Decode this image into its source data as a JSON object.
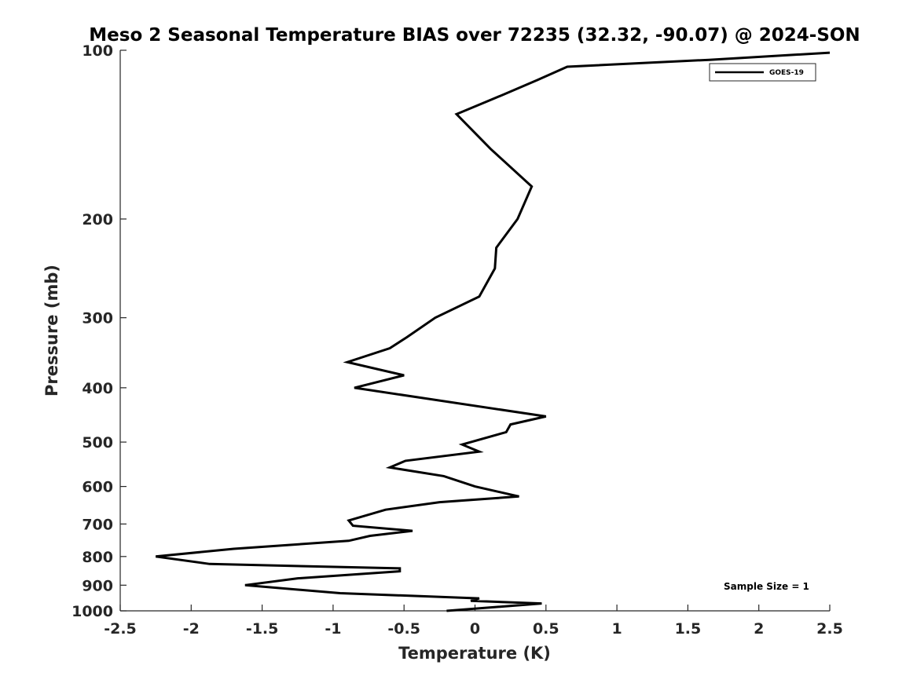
{
  "chart_data": {
    "type": "line",
    "title": "Meso 2 Seasonal Temperature BIAS over 72235 (32.32, -90.07) @ 2024-SON",
    "xlabel": "Temperature (K)",
    "ylabel": "Pressure (mb)",
    "xlim": [
      -2.5,
      2.5
    ],
    "ylim": [
      1000,
      100
    ],
    "yscale": "log",
    "reversed_y": true,
    "xticks": [
      -2.5,
      -2,
      -1.5,
      -1,
      -0.5,
      0,
      0.5,
      1,
      1.5,
      2,
      2.5
    ],
    "xtick_labels": [
      "-2.5",
      "-2",
      "-1.5",
      "-1",
      "-0.5",
      "0",
      "0.5",
      "1",
      "1.5",
      "2",
      "2.5"
    ],
    "yticks": [
      100,
      200,
      300,
      400,
      500,
      600,
      700,
      800,
      900,
      1000
    ],
    "ytick_labels": [
      "100",
      "200",
      "300",
      "400",
      "500",
      "600",
      "700",
      "800",
      "900",
      "1000"
    ],
    "grid": false,
    "legend": {
      "position": "top-right",
      "entries": [
        "GOES-19"
      ]
    },
    "annotation": "Sample Size = 1",
    "series": [
      {
        "name": "GOES-19",
        "color": "#000000",
        "points": [
          {
            "x": -0.2,
            "p": 1000
          },
          {
            "x": 0.47,
            "p": 970
          },
          {
            "x": -0.03,
            "p": 960
          },
          {
            "x": 0.03,
            "p": 950
          },
          {
            "x": -0.95,
            "p": 930
          },
          {
            "x": -1.62,
            "p": 900
          },
          {
            "x": -1.25,
            "p": 875
          },
          {
            "x": -0.53,
            "p": 850
          },
          {
            "x": -0.53,
            "p": 840
          },
          {
            "x": -1.87,
            "p": 825
          },
          {
            "x": -2.25,
            "p": 800
          },
          {
            "x": -1.7,
            "p": 775
          },
          {
            "x": -0.89,
            "p": 750
          },
          {
            "x": -0.74,
            "p": 735
          },
          {
            "x": -0.44,
            "p": 720
          },
          {
            "x": -0.86,
            "p": 705
          },
          {
            "x": -0.89,
            "p": 690
          },
          {
            "x": -0.63,
            "p": 660
          },
          {
            "x": -0.25,
            "p": 640
          },
          {
            "x": 0.31,
            "p": 625
          },
          {
            "x": 0.0,
            "p": 600
          },
          {
            "x": -0.22,
            "p": 575
          },
          {
            "x": -0.6,
            "p": 555
          },
          {
            "x": -0.49,
            "p": 540
          },
          {
            "x": 0.03,
            "p": 520
          },
          {
            "x": -0.09,
            "p": 505
          },
          {
            "x": 0.22,
            "p": 480
          },
          {
            "x": 0.25,
            "p": 465
          },
          {
            "x": 0.5,
            "p": 450
          },
          {
            "x": -0.85,
            "p": 400
          },
          {
            "x": -0.5,
            "p": 380
          },
          {
            "x": -0.9,
            "p": 360
          },
          {
            "x": -0.6,
            "p": 340
          },
          {
            "x": -0.48,
            "p": 325
          },
          {
            "x": -0.28,
            "p": 300
          },
          {
            "x": 0.03,
            "p": 275
          },
          {
            "x": 0.14,
            "p": 245
          },
          {
            "x": 0.15,
            "p": 225
          },
          {
            "x": 0.3,
            "p": 200
          },
          {
            "x": 0.4,
            "p": 175
          },
          {
            "x": 0.11,
            "p": 150
          },
          {
            "x": -0.13,
            "p": 130
          },
          {
            "x": 0.2,
            "p": 120
          },
          {
            "x": 0.44,
            "p": 113
          },
          {
            "x": 0.65,
            "p": 107
          },
          {
            "x": 1.65,
            "p": 104
          },
          {
            "x": 2.5,
            "p": 101
          }
        ]
      }
    ]
  }
}
